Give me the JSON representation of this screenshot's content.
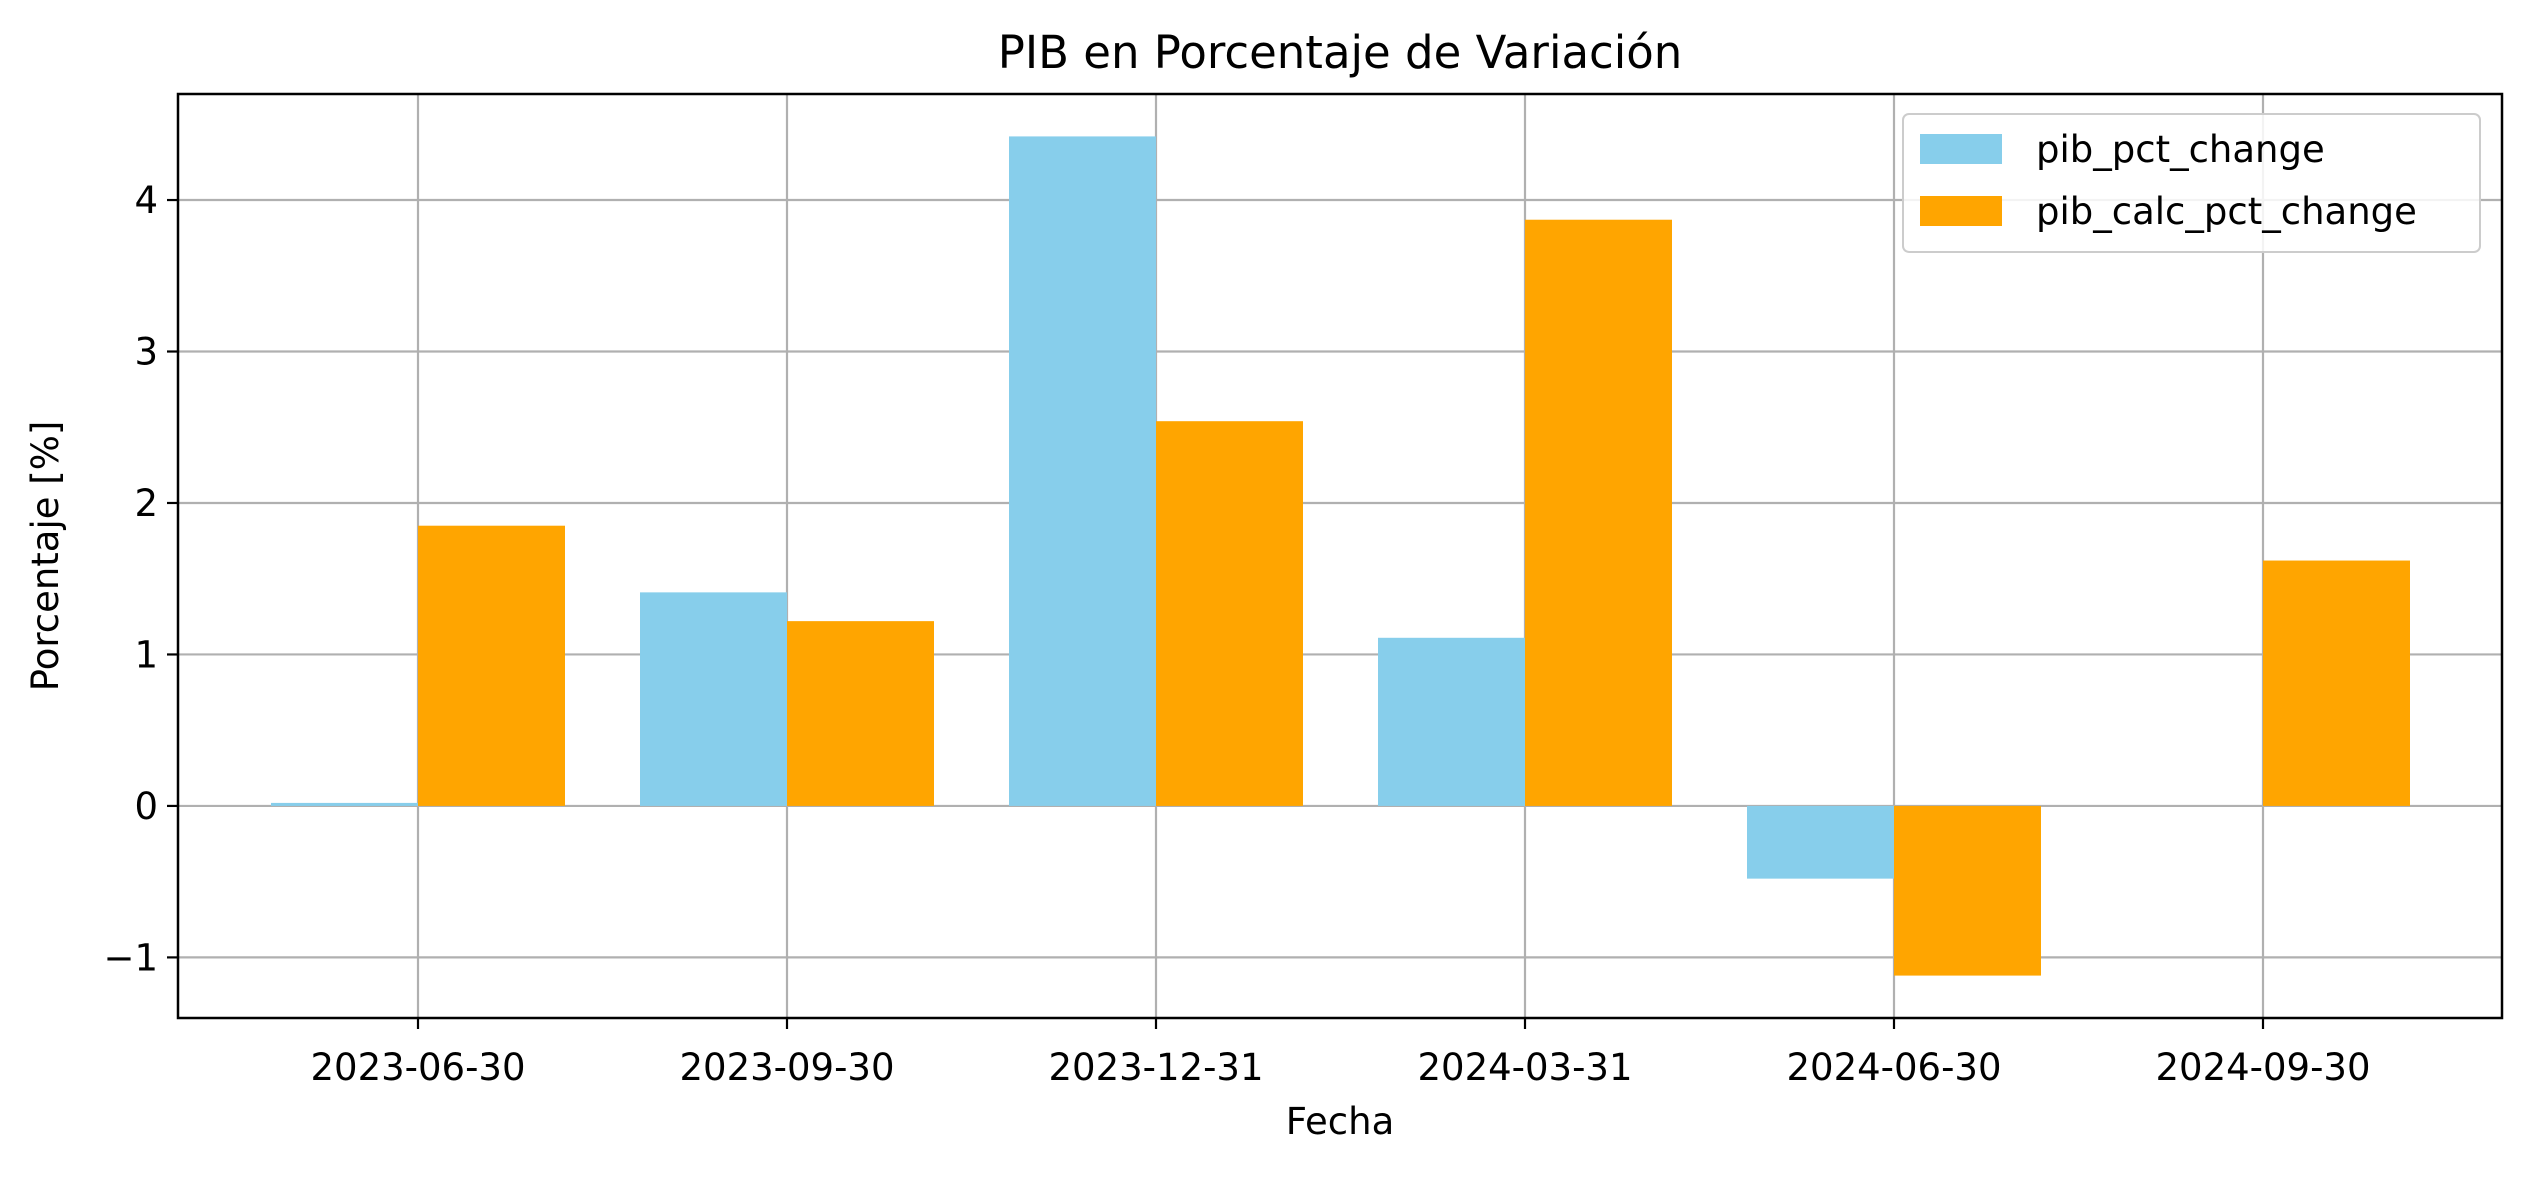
{
  "chart_data": {
    "type": "bar",
    "title": "PIB en Porcentaje de Variación",
    "xlabel": "Fecha",
    "ylabel": "Porcentaje [%]",
    "categories": [
      "2023-06-30",
      "2023-09-30",
      "2023-12-31",
      "2024-03-31",
      "2024-06-30",
      "2024-09-30"
    ],
    "series": [
      {
        "name": "pib_pct_change",
        "color": "#87CEEB",
        "values": [
          0.02,
          1.41,
          4.42,
          1.11,
          -0.48,
          0.0
        ]
      },
      {
        "name": "pib_calc_pct_change",
        "color": "#FFA500",
        "values": [
          1.85,
          1.22,
          2.54,
          3.87,
          -1.12,
          1.62
        ]
      }
    ],
    "ylim": [
      -1.4,
      4.7
    ],
    "yticks": [
      -1,
      0,
      1,
      2,
      3,
      4
    ],
    "ytick_labels": [
      "−1",
      "0",
      "1",
      "2",
      "3",
      "4"
    ],
    "grid": true,
    "legend_position": "top-right"
  }
}
